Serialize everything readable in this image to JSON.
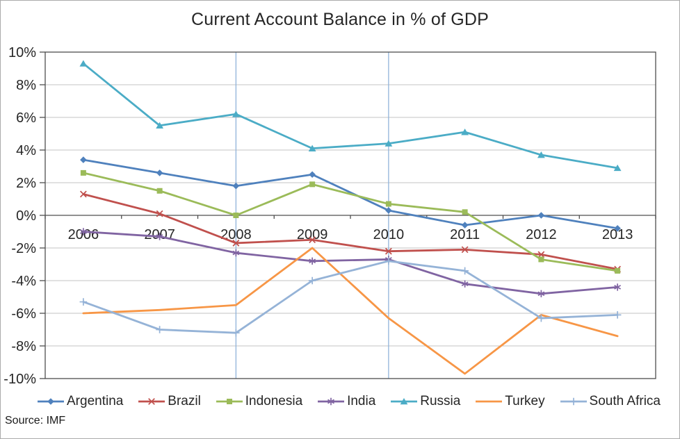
{
  "title": "Current Account Balance in % of GDP",
  "source": "Source: IMF",
  "colors": {
    "grid": "#C3C3C3",
    "axis": "#4D4D4D",
    "text": "#262626",
    "guide": "#90B3DA",
    "frame_border": "#ABABAB"
  },
  "chart_data": {
    "type": "line",
    "title": "Current Account Balance in % of GDP",
    "xlabel": "",
    "ylabel": "",
    "ylim": [
      -10,
      10
    ],
    "grid": "horizontal",
    "legend_position": "bottom",
    "vertical_guides": [
      "2008",
      "2010"
    ],
    "categories": [
      "2006",
      "2007",
      "2008",
      "2009",
      "2010",
      "2011",
      "2012",
      "2013"
    ],
    "y_ticks": [
      {
        "value": 10,
        "label": "10%"
      },
      {
        "value": 8,
        "label": "8%"
      },
      {
        "value": 6,
        "label": "6%"
      },
      {
        "value": 4,
        "label": "4%"
      },
      {
        "value": 2,
        "label": "2%"
      },
      {
        "value": 0,
        "label": "0%"
      },
      {
        "value": -2,
        "label": "-2%"
      },
      {
        "value": -4,
        "label": "-4%"
      },
      {
        "value": -6,
        "label": "-6%"
      },
      {
        "value": -8,
        "label": "-8%"
      },
      {
        "value": -10,
        "label": "-10%"
      }
    ],
    "series": [
      {
        "name": "Argentina",
        "color": "#4F81BD",
        "marker": "diamond",
        "values": [
          3.4,
          2.6,
          1.8,
          2.5,
          0.3,
          -0.6,
          0.0,
          -0.8
        ]
      },
      {
        "name": "Brazil",
        "color": "#C0504D",
        "marker": "x",
        "values": [
          1.3,
          0.1,
          -1.7,
          -1.5,
          -2.2,
          -2.1,
          -2.4,
          -3.3
        ]
      },
      {
        "name": "Indonesia",
        "color": "#9BBB59",
        "marker": "square",
        "values": [
          2.6,
          1.5,
          0.0,
          1.9,
          0.7,
          0.2,
          -2.7,
          -3.4
        ]
      },
      {
        "name": "India",
        "color": "#8064A2",
        "marker": "asterisk",
        "values": [
          -1.0,
          -1.3,
          -2.3,
          -2.8,
          -2.7,
          -4.2,
          -4.8,
          -4.4
        ]
      },
      {
        "name": "Russia",
        "color": "#4BACC6",
        "marker": "triangle",
        "values": [
          9.3,
          5.5,
          6.2,
          4.1,
          4.4,
          5.1,
          3.7,
          2.9
        ]
      },
      {
        "name": "Turkey",
        "color": "#F79646",
        "marker": "none",
        "values": [
          -6.0,
          -5.8,
          -5.5,
          -2.0,
          -6.3,
          -9.7,
          -6.1,
          -7.4
        ]
      },
      {
        "name": "South Africa",
        "color": "#95B3D7",
        "marker": "plus",
        "values": [
          -5.3,
          -7.0,
          -7.2,
          -4.0,
          -2.8,
          -3.4,
          -6.3,
          -6.1
        ]
      }
    ]
  }
}
